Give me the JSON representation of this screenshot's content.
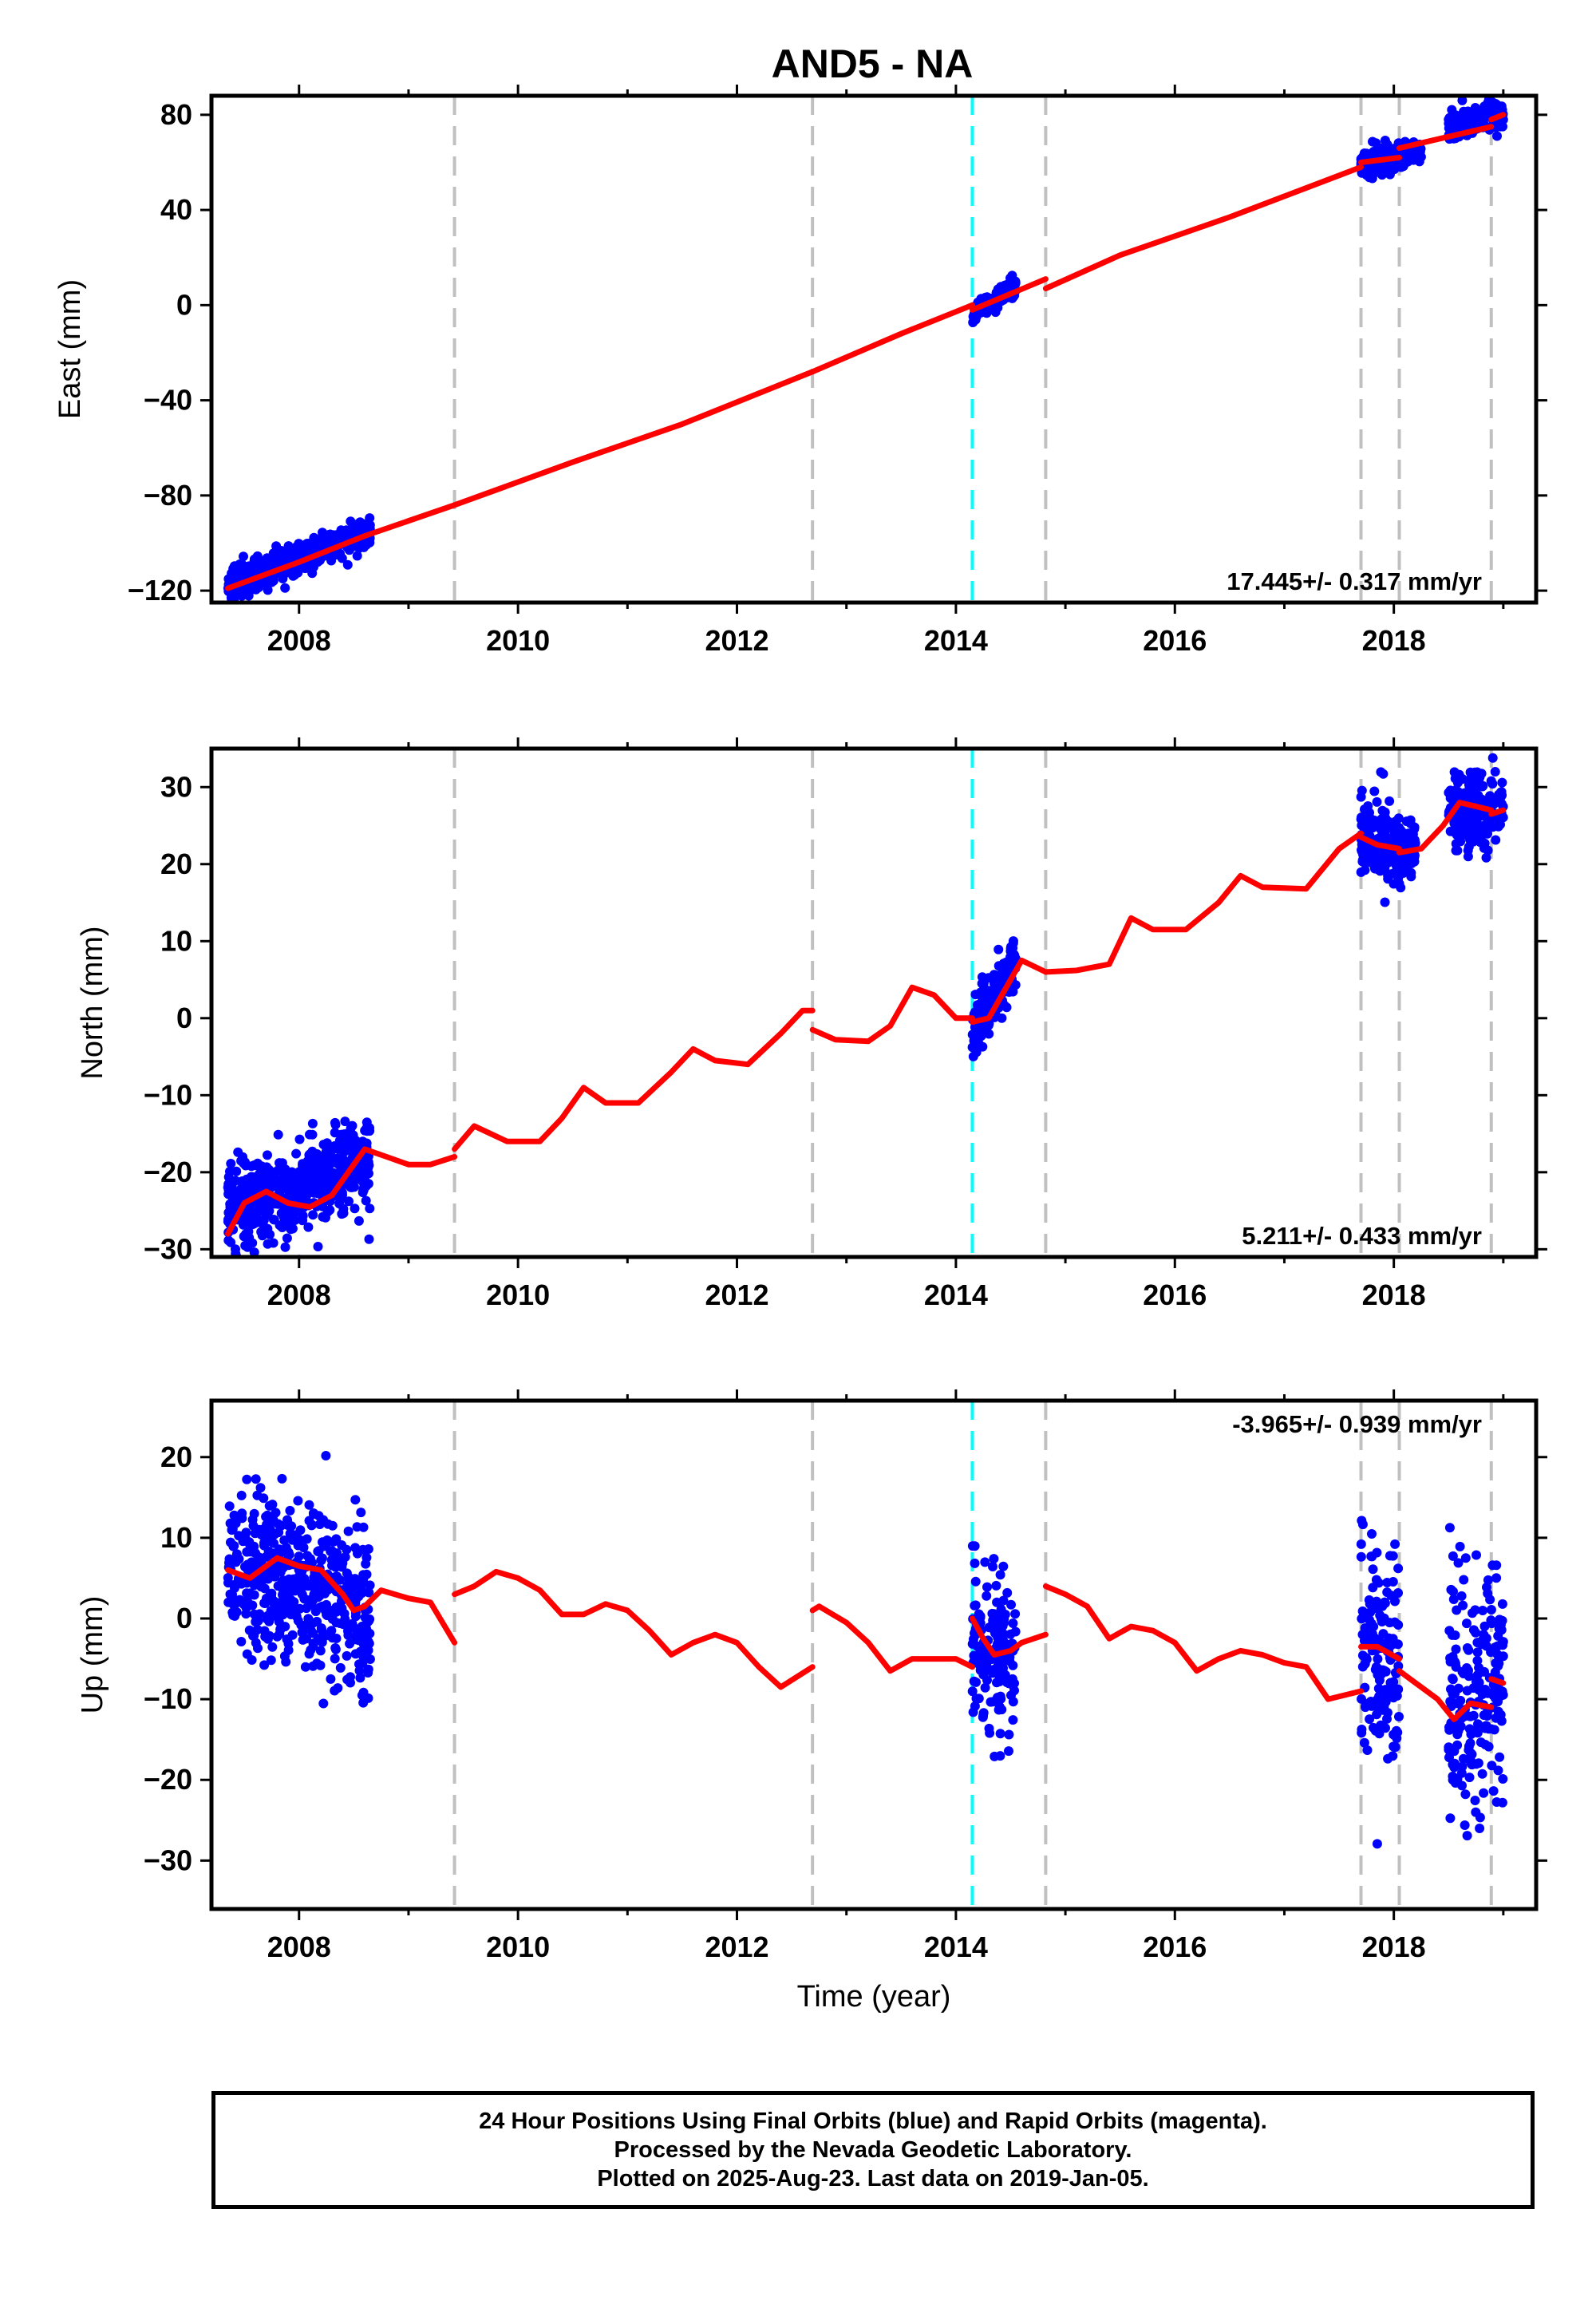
{
  "title": "AND5 - NA",
  "colors": {
    "data": "#0000ff",
    "model": "#ff0000",
    "offset_line": "#c0c0c0",
    "event_line": "#00ffff",
    "frame": "#000000"
  },
  "chart_data": [
    {
      "type": "scatter",
      "component": "east",
      "ylabel": "East (mm)",
      "xlim": [
        2007.2,
        2019.3
      ],
      "ylim": [
        -125,
        88
      ],
      "yticks": [
        -120,
        -80,
        -40,
        0,
        40,
        80
      ],
      "xticks": [
        2008,
        2010,
        2012,
        2014,
        2016,
        2018
      ],
      "rate_label": "17.445+/- 0.317 mm/yr",
      "rate_label_position": "bottom-right",
      "vertical_lines": {
        "offsets": [
          2009.42,
          2012.69,
          2014.82,
          2017.7,
          2018.05,
          2018.89
        ],
        "events": [
          2014.15
        ]
      },
      "series": [
        {
          "role": "model",
          "segments": [
            {
              "x": [
                2007.35,
                2008.0,
                2008.6,
                2009.42
              ],
              "y": [
                -119,
                -108,
                -97,
                -84
              ]
            },
            {
              "x": [
                2009.42,
                2010.5,
                2011.5,
                2012.69
              ],
              "y": [
                -84,
                -66,
                -50,
                -28
              ]
            },
            {
              "x": [
                2012.69,
                2013.5,
                2014.15
              ],
              "y": [
                -28,
                -12,
                0
              ]
            },
            {
              "x": [
                2014.15,
                2014.82
              ],
              "y": [
                -2,
                11
              ]
            },
            {
              "x": [
                2014.82,
                2015.5,
                2016.5,
                2017.7
              ],
              "y": [
                7,
                21,
                37,
                58
              ]
            },
            {
              "x": [
                2017.7,
                2018.05
              ],
              "y": [
                60,
                62
              ]
            },
            {
              "x": [
                2018.05,
                2018.89
              ],
              "y": [
                66,
                75
              ]
            },
            {
              "x": [
                2018.89,
                2019.0
              ],
              "y": [
                78,
                80
              ]
            }
          ]
        },
        {
          "role": "data",
          "clusters": [
            {
              "x": [
                2007.35,
                2008.65
              ],
              "y": [
                -118,
                -95
              ],
              "spread": 3
            },
            {
              "x": [
                2014.15,
                2014.55
              ],
              "y": [
                -3,
                8
              ],
              "spread": 2
            },
            {
              "x": [
                2017.7,
                2018.05
              ],
              "y": [
                59,
                62
              ],
              "spread": 3
            },
            {
              "x": [
                2018.05,
                2018.25
              ],
              "y": [
                62,
                65
              ],
              "spread": 2
            },
            {
              "x": [
                2018.5,
                2019.0
              ],
              "y": [
                75,
                81
              ],
              "spread": 3
            }
          ]
        }
      ]
    },
    {
      "type": "scatter",
      "component": "north",
      "ylabel": "North (mm)",
      "xlim": [
        2007.2,
        2019.3
      ],
      "ylim": [
        -31,
        35
      ],
      "yticks": [
        -30,
        -20,
        -10,
        0,
        10,
        20,
        30
      ],
      "xticks": [
        2008,
        2010,
        2012,
        2014,
        2016,
        2018
      ],
      "rate_label": "5.211+/- 0.433 mm/yr",
      "rate_label_position": "bottom-right",
      "vertical_lines": {
        "offsets": [
          2009.42,
          2012.69,
          2014.82,
          2017.7,
          2018.05,
          2018.89
        ],
        "events": [
          2014.15
        ]
      },
      "series": [
        {
          "role": "model",
          "segments": [
            {
              "x": [
                2007.35,
                2007.5,
                2007.7,
                2007.9,
                2008.1,
                2008.3,
                2008.5,
                2008.6,
                2008.8,
                2009.0,
                2009.2,
                2009.42
              ],
              "y": [
                -28,
                -24,
                -22.5,
                -24,
                -24.5,
                -23,
                -19,
                -17,
                -18,
                -19,
                -19,
                -18
              ]
            },
            {
              "x": [
                2009.42,
                2009.6,
                2009.9,
                2010.2,
                2010.4,
                2010.6,
                2010.8,
                2011.1,
                2011.4,
                2011.6,
                2011.8,
                2012.1,
                2012.4,
                2012.6,
                2012.69
              ],
              "y": [
                -17,
                -14,
                -16,
                -16,
                -13,
                -9,
                -11,
                -11,
                -7,
                -4,
                -5.5,
                -6,
                -2,
                1,
                1
              ]
            },
            {
              "x": [
                2012.69,
                2012.9,
                2013.2,
                2013.4,
                2013.6,
                2013.8,
                2014.0,
                2014.15
              ],
              "y": [
                -1.5,
                -2.8,
                -3,
                -1,
                4,
                3,
                0,
                0
              ]
            },
            {
              "x": [
                2014.15,
                2014.3,
                2014.5,
                2014.6,
                2014.82
              ],
              "y": [
                -0.5,
                0,
                5,
                7.5,
                6
              ]
            },
            {
              "x": [
                2014.82,
                2015.1,
                2015.4,
                2015.6,
                2015.8,
                2016.1,
                2016.4,
                2016.6,
                2016.8,
                2017.2,
                2017.5,
                2017.7
              ],
              "y": [
                6,
                6.2,
                7,
                13,
                11.5,
                11.5,
                15,
                18.5,
                17,
                16.8,
                22,
                24
              ]
            },
            {
              "x": [
                2017.7,
                2017.85,
                2018.05
              ],
              "y": [
                23.5,
                22.5,
                22
              ]
            },
            {
              "x": [
                2018.05,
                2018.25,
                2018.45,
                2018.6,
                2018.75,
                2018.89
              ],
              "y": [
                21.5,
                22,
                25,
                28,
                27.5,
                27
              ]
            },
            {
              "x": [
                2018.89,
                2019.0
              ],
              "y": [
                26.5,
                27
              ]
            }
          ]
        },
        {
          "role": "data",
          "clusters": [
            {
              "x": [
                2007.35,
                2008.65
              ],
              "y": [
                -25,
                -18
              ],
              "spread": 3
            },
            {
              "x": [
                2014.15,
                2014.55
              ],
              "y": [
                -1,
                7
              ],
              "spread": 2
            },
            {
              "x": [
                2017.7,
                2018.05
              ],
              "y": [
                23,
                22
              ],
              "spread": 2.5
            },
            {
              "x": [
                2018.05,
                2018.2
              ],
              "y": [
                21.5,
                23
              ],
              "spread": 2
            },
            {
              "x": [
                2018.5,
                2019.0
              ],
              "y": [
                27,
                27
              ],
              "spread": 2.5
            }
          ]
        }
      ]
    },
    {
      "type": "scatter",
      "component": "up",
      "ylabel": "Up (mm)",
      "xlabel": "Time (year)",
      "xlim": [
        2007.2,
        2019.3
      ],
      "ylim": [
        -36,
        27
      ],
      "yticks": [
        -30,
        -20,
        -10,
        0,
        10,
        20
      ],
      "xticks": [
        2008,
        2010,
        2012,
        2014,
        2016,
        2018
      ],
      "rate_label": "-3.965+/- 0.939 mm/yr",
      "rate_label_position": "top-right",
      "vertical_lines": {
        "offsets": [
          2009.42,
          2012.69,
          2014.82,
          2017.7,
          2018.05,
          2018.89
        ],
        "events": [
          2014.15
        ]
      },
      "series": [
        {
          "role": "model",
          "segments": [
            {
              "x": [
                2007.35,
                2007.55,
                2007.8,
                2008.0,
                2008.2,
                2008.4,
                2008.5,
                2008.6,
                2008.75,
                2009.0,
                2009.2,
                2009.42
              ],
              "y": [
                6,
                5,
                7.5,
                6.5,
                6,
                3,
                1,
                1.5,
                3.5,
                2.5,
                2,
                -3
              ]
            },
            {
              "x": [
                2009.42,
                2009.6,
                2009.8,
                2010.0,
                2010.2,
                2010.4,
                2010.6,
                2010.8,
                2011.0,
                2011.2,
                2011.4,
                2011.6,
                2011.8,
                2012.0,
                2012.2,
                2012.4,
                2012.69
              ],
              "y": [
                3,
                4,
                5.8,
                5,
                3.5,
                0.5,
                0.5,
                1.8,
                1,
                -1.5,
                -4.5,
                -3,
                -2,
                -3,
                -6,
                -8.5,
                -6
              ]
            },
            {
              "x": [
                2012.69,
                2012.75,
                2013.0,
                2013.2,
                2013.4,
                2013.6,
                2013.8,
                2014.0,
                2014.15
              ],
              "y": [
                1,
                1.5,
                -0.5,
                -3,
                -6.5,
                -5,
                -5,
                -5,
                -6
              ]
            },
            {
              "x": [
                2014.15,
                2014.25,
                2014.35,
                2014.5,
                2014.6,
                2014.82
              ],
              "y": [
                0,
                -2.5,
                -4.5,
                -4,
                -3,
                -2
              ]
            },
            {
              "x": [
                2014.82,
                2015.0,
                2015.2,
                2015.4,
                2015.6,
                2015.8,
                2016.0,
                2016.2,
                2016.4,
                2016.6,
                2016.8,
                2017.0,
                2017.2,
                2017.4,
                2017.7
              ],
              "y": [
                4,
                3,
                1.5,
                -2.5,
                -1,
                -1.5,
                -3,
                -6.5,
                -5,
                -4,
                -4.5,
                -5.5,
                -6,
                -10,
                -9
              ]
            },
            {
              "x": [
                2017.7,
                2017.85,
                2018.05
              ],
              "y": [
                -3.5,
                -3.5,
                -5
              ]
            },
            {
              "x": [
                2018.05,
                2018.2,
                2018.4,
                2018.55,
                2018.7,
                2018.89
              ],
              "y": [
                -6.5,
                -8,
                -10,
                -12.5,
                -10.5,
                -11
              ]
            },
            {
              "x": [
                2018.89,
                2019.0
              ],
              "y": [
                -7.5,
                -8
              ]
            }
          ]
        },
        {
          "role": "data",
          "clusters": [
            {
              "x": [
                2007.35,
                2008.65
              ],
              "y": [
                7,
                1
              ],
              "spread": 5
            },
            {
              "x": [
                2014.15,
                2014.55
              ],
              "y": [
                -3,
                -5
              ],
              "spread": 5
            },
            {
              "x": [
                2017.7,
                2018.05
              ],
              "y": [
                -4,
                -5
              ],
              "spread": 7
            },
            {
              "x": [
                2018.5,
                2019.0
              ],
              "y": [
                -11,
                -9
              ],
              "spread": 8
            }
          ]
        }
      ]
    }
  ],
  "footer": {
    "line1": "24 Hour Positions Using Final Orbits (blue) and Rapid Orbits (magenta).",
    "line2": "Processed by the Nevada Geodetic Laboratory.",
    "line3": "Plotted on 2025-Aug-23. Last data on 2019-Jan-05."
  }
}
